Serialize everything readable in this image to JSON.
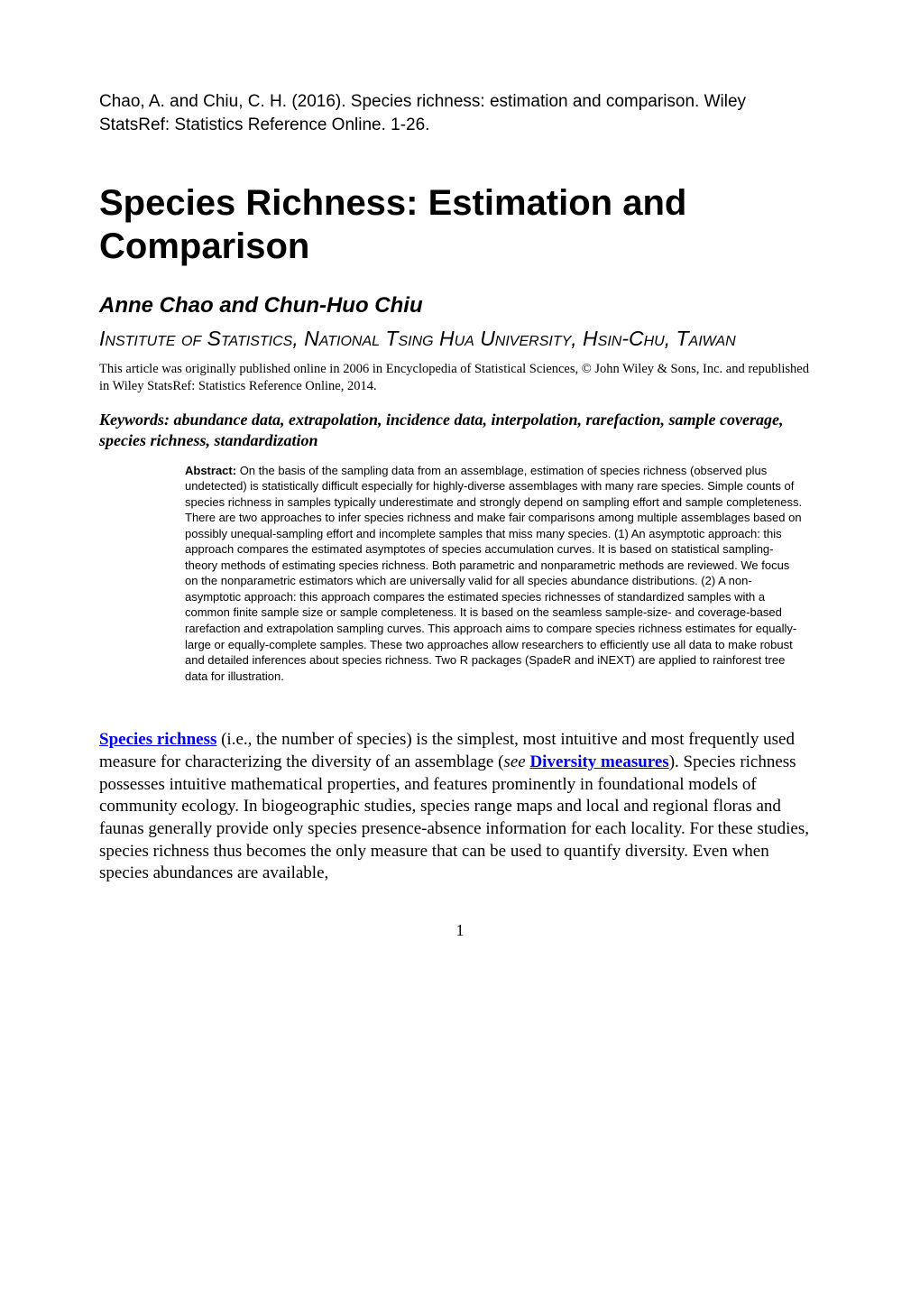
{
  "citation": "Chao, A. and Chiu, C. H. (2016). Species richness: estimation and comparison. Wiley StatsRef: Statistics Reference Online. 1-26.",
  "title": "Species Richness: Estimation and Comparison",
  "authors": "Anne Chao and Chun-Huo Chiu",
  "affiliation": "Institute of Statistics, National Tsing Hua University, Hsin-Chu, Taiwan",
  "pub_note": "This article was originally published online in 2006 in Encyclopedia of Statistical Sciences, © John Wiley & Sons, Inc. and republished in Wiley StatsRef: Statistics Reference Online, 2014.",
  "keywords": "Keywords: abundance data, extrapolation, incidence data, interpolation, rarefaction, sample coverage, species richness, standardization",
  "abstract_label": "Abstract:",
  "abstract_body": " On the basis of the sampling data from an assemblage, estimation of species richness (observed plus undetected) is statistically difficult especially for highly-diverse assemblages with many rare species. Simple counts of species richness in samples typically underestimate and strongly depend on sampling effort and sample completeness. There are two approaches to infer species richness and make fair comparisons among multiple assemblages based on possibly unequal-sampling effort and incomplete samples that miss many species. (1) An asymptotic approach: this approach compares the estimated asymptotes of species accumulation curves. It is based on statistical sampling-theory methods of estimating species richness. Both parametric and nonparametric methods are reviewed. We focus on the nonparametric estimators which are universally valid for all species abundance distributions. (2) A non-asymptotic approach: this approach compares the estimated species richnesses of standardized samples with a common finite sample size or sample completeness. It is based on the seamless sample-size- and coverage-based rarefaction and extrapolation sampling curves. This approach aims to compare species richness estimates for equally-large or equally-complete samples. These two approaches allow researchers to efficiently use all data to make robust and detailed inferences about species richness. Two R packages (SpadeR and iNEXT) are applied to rainforest tree data for illustration.",
  "body": {
    "link1": "Species richness",
    "seg1": " (i.e., the number of species) is the simplest, most intuitive and most frequently used measure for characterizing the diversity of an assemblage (",
    "see": "see",
    "seg2": " ",
    "link2": "Diversity measures",
    "seg3": "). Species richness possesses intuitive mathematical properties, and features prominently in foundational models of community ecology. In biogeographic studies, species range maps and local and regional floras and faunas generally provide only species presence-absence information for each locality. For these studies, species richness thus becomes the only measure that can be used to quantify diversity. Even when species abundances are available,"
  },
  "page_number": "1",
  "colors": {
    "text": "#000000",
    "link": "#0000ee",
    "background": "#ffffff"
  },
  "fonts": {
    "serif": "Times New Roman",
    "sans": "Arial",
    "citation_size": 19,
    "title_size": 40,
    "authors_size": 24,
    "affiliation_size": 23,
    "pubnote_size": 14.5,
    "keywords_size": 18,
    "abstract_size": 13,
    "body_size": 19
  }
}
